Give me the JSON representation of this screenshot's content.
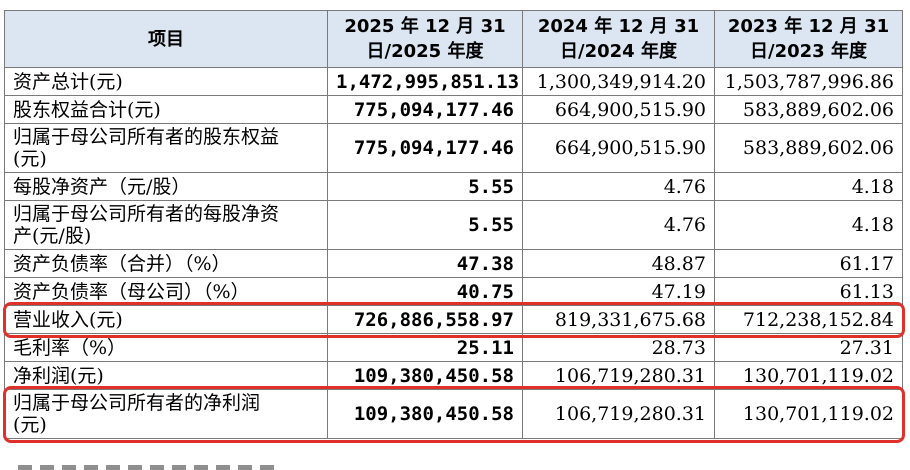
{
  "table": {
    "headers": [
      "项目",
      "2025 年 12 月 31\n日/2025 年度",
      "2024 年 12 月 31\n日/2024 年度",
      "2023 年 12 月 31\n日/2023 年度"
    ],
    "rows": [
      {
        "label": "资产总计(元)",
        "values": [
          "1,472,995,851.13",
          "1,300,349,914.20",
          "1,503,787,996.86"
        ],
        "lines": 1,
        "highlight": false
      },
      {
        "label": "股东权益合计(元)",
        "values": [
          "775,094,177.46",
          "664,900,515.90",
          "583,889,602.06"
        ],
        "lines": 1,
        "highlight": false
      },
      {
        "label": "归属于母公司所有者的股东权益\n(元)",
        "values": [
          "775,094,177.46",
          "664,900,515.90",
          "583,889,602.06"
        ],
        "lines": 2,
        "highlight": false
      },
      {
        "label": "每股净资产（元/股）",
        "values": [
          "5.55",
          "4.76",
          "4.18"
        ],
        "lines": 1,
        "highlight": false
      },
      {
        "label": "归属于母公司所有者的每股净资\n产(元/股)",
        "values": [
          "5.55",
          "4.76",
          "4.18"
        ],
        "lines": 2,
        "highlight": false
      },
      {
        "label": "资产负债率（合并）（%）",
        "values": [
          "47.38",
          "48.87",
          "61.17"
        ],
        "lines": 1,
        "highlight": false
      },
      {
        "label": "资产负债率（母公司）（%）",
        "values": [
          "40.75",
          "47.19",
          "61.13"
        ],
        "lines": 1,
        "highlight": false
      },
      {
        "label": "营业收入(元)",
        "values": [
          "726,886,558.97",
          "819,331,675.68",
          "712,238,152.84"
        ],
        "lines": 1,
        "highlight": true
      },
      {
        "label": "毛利率（%）",
        "values": [
          "25.11",
          "28.73",
          "27.31"
        ],
        "lines": 1,
        "highlight": false
      },
      {
        "label": "净利润(元)",
        "values": [
          "109,380,450.58",
          "106,719,280.31",
          "130,701,119.02"
        ],
        "lines": 1,
        "highlight": false
      },
      {
        "label": "归属于母公司所有者的净利润\n(元)",
        "values": [
          "109,380,450.58",
          "106,719,280.31",
          "130,701,119.02"
        ],
        "lines": 2,
        "highlight": true
      }
    ]
  },
  "colors": {
    "header_bg": "#dce6f2",
    "highlight_border": "#e0302a",
    "grid": "#7a7a7a"
  }
}
